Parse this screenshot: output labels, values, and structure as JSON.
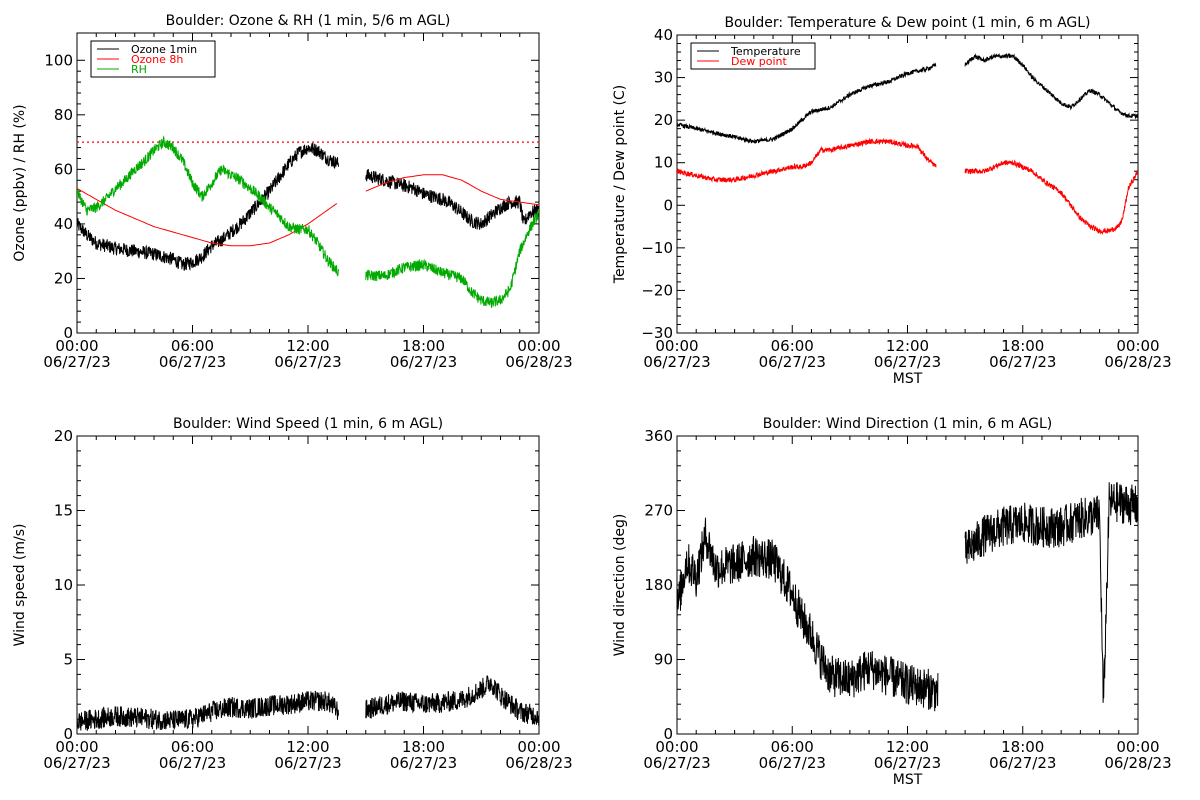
{
  "chart_data": [
    {
      "type": "line",
      "title": "Boulder: Ozone & RH (1 min, 5/6 m AGL)",
      "xlabel": "",
      "ylabel": "Ozone (ppbv) / RH (%)",
      "xlim": [
        0,
        24
      ],
      "ylim": [
        0,
        110
      ],
      "xticks": [
        0,
        6,
        12,
        18,
        24
      ],
      "xtick_labels": [
        [
          "00:00",
          "06/27/23"
        ],
        [
          "06:00",
          "06/27/23"
        ],
        [
          "12:00",
          "06/27/23"
        ],
        [
          "18:00",
          "06/27/23"
        ],
        [
          "00:00",
          "06/28/23"
        ]
      ],
      "yticks": [
        0,
        20,
        40,
        60,
        80,
        100
      ],
      "ytick_labels": [
        "0",
        "20",
        "40",
        "60",
        "80",
        "100"
      ],
      "grid": false,
      "legend": "top-left",
      "hline": {
        "y": 70,
        "color": "#ff0000",
        "style": "dotted"
      },
      "series": [
        {
          "name": "Ozone 1min",
          "color": "#000000",
          "noise": 2.5,
          "x": [
            0,
            0.5,
            1,
            1.5,
            2,
            3,
            4,
            5,
            5.5,
            6,
            6.5,
            7,
            7.5,
            8,
            8.5,
            9,
            9.5,
            10,
            10.5,
            11,
            11.5,
            12,
            12.5,
            13,
            13.6,
            14.8,
            15,
            16,
            17,
            17.5,
            18,
            19,
            19.5,
            20,
            20.5,
            21,
            21.5,
            22,
            22.5,
            23,
            23.2,
            23.5,
            24
          ],
          "y": [
            40,
            36,
            33,
            32,
            31,
            30,
            29,
            27,
            25,
            26,
            28,
            32,
            34,
            37,
            40,
            44,
            48,
            52,
            57,
            62,
            66,
            68,
            67,
            64,
            62,
            null,
            58,
            56,
            54,
            53,
            51,
            49,
            47,
            44,
            41,
            40,
            43,
            46,
            48,
            48,
            40,
            44,
            45
          ]
        },
        {
          "name": "Ozone 8h",
          "color": "#ff0000",
          "noise": 0,
          "x": [
            0,
            1,
            2,
            3,
            4,
            5,
            6,
            7,
            8,
            9,
            10,
            11,
            12,
            13,
            13.6,
            14.8,
            15,
            16,
            17,
            18,
            19,
            20,
            21,
            22,
            23,
            24
          ],
          "y": [
            53,
            49,
            45,
            42,
            39,
            37,
            35,
            33,
            32,
            32,
            33,
            36,
            40,
            45,
            48,
            null,
            52,
            55,
            57,
            58,
            58,
            56,
            52,
            49,
            48,
            47
          ]
        },
        {
          "name": "RH",
          "color": "#00aa00",
          "noise": 2,
          "x": [
            0,
            0.5,
            1,
            1.5,
            2,
            2.5,
            3,
            3.5,
            4,
            4.5,
            5,
            5.5,
            6,
            6.5,
            7,
            7.5,
            8,
            8.5,
            9,
            9.5,
            10,
            10.5,
            11,
            11.5,
            12,
            12.5,
            13,
            13.6,
            14.8,
            15,
            16,
            17,
            18,
            19,
            20,
            20.5,
            21,
            21.5,
            22,
            22.5,
            23,
            23.5,
            24
          ],
          "y": [
            52,
            45,
            46,
            49,
            53,
            56,
            60,
            63,
            67,
            70,
            68,
            63,
            55,
            50,
            55,
            60,
            58,
            56,
            53,
            50,
            46,
            43,
            39,
            38,
            38,
            33,
            27,
            22,
            null,
            21,
            21,
            24,
            25,
            22,
            20,
            15,
            12,
            11,
            12,
            16,
            30,
            38,
            44
          ]
        }
      ]
    },
    {
      "type": "line",
      "title": "Boulder: Temperature & Dew point (1 min, 6 m AGL)",
      "xlabel": "MST",
      "ylabel": "Temperature / Dew point (C)",
      "xlim": [
        0,
        24
      ],
      "ylim": [
        -30,
        40
      ],
      "xticks": [
        0,
        6,
        12,
        18,
        24
      ],
      "xtick_labels": [
        [
          "00:00",
          "06/27/23"
        ],
        [
          "06:00",
          "06/27/23"
        ],
        [
          "12:00",
          "06/27/23"
        ],
        [
          "18:00",
          "06/27/23"
        ],
        [
          "00:00",
          "06/28/23"
        ]
      ],
      "yticks": [
        -30,
        -20,
        -10,
        0,
        10,
        20,
        30,
        40
      ],
      "ytick_labels": [
        "−30",
        "−20",
        "−10",
        "0",
        "10",
        "20",
        "30",
        "40"
      ],
      "grid": false,
      "legend": "top-left",
      "series": [
        {
          "name": "Temperature",
          "color": "#000000",
          "noise": 0.5,
          "x": [
            0,
            1,
            2,
            3,
            4,
            5,
            6,
            6.5,
            7,
            8,
            9,
            10,
            11,
            12,
            13,
            13.5,
            14.8,
            15,
            15.5,
            16,
            16.5,
            17,
            17.5,
            18,
            18.5,
            19,
            19.5,
            20,
            20.5,
            21,
            21.5,
            22,
            22.5,
            23,
            23.5,
            24
          ],
          "y": [
            19,
            18,
            17,
            16,
            15,
            15.5,
            18,
            20,
            22,
            23,
            26,
            28,
            29,
            31,
            32,
            33,
            null,
            33,
            35,
            34,
            35,
            35,
            35,
            33,
            30,
            28,
            26,
            24,
            23,
            25,
            27,
            26,
            24,
            22,
            21,
            21
          ]
        },
        {
          "name": "Dew point",
          "color": "#ff0000",
          "noise": 0.6,
          "x": [
            0,
            1,
            2,
            3,
            4,
            5,
            6,
            6.5,
            7,
            7.5,
            8,
            9,
            10,
            11,
            12,
            12.5,
            13,
            13.5,
            14.8,
            15,
            16,
            17,
            17.5,
            18,
            18.5,
            19,
            20,
            20.5,
            21,
            21.5,
            22,
            22.5,
            23,
            23.2,
            23.5,
            24
          ],
          "y": [
            8,
            7,
            6,
            6,
            7,
            8,
            9,
            9,
            10,
            13,
            13,
            14,
            15,
            15,
            14,
            14,
            11,
            9,
            null,
            8,
            8,
            10,
            10,
            9,
            8,
            6,
            3,
            0,
            -3,
            -5,
            -6,
            -6,
            -5,
            -3,
            4,
            8
          ]
        }
      ]
    },
    {
      "type": "line",
      "title": "Boulder: Wind Speed (1 min, 6 m AGL)",
      "xlabel": "",
      "ylabel": "Wind speed (m/s)",
      "xlim": [
        0,
        24
      ],
      "ylim": [
        0,
        20
      ],
      "xticks": [
        0,
        6,
        12,
        18,
        24
      ],
      "xtick_labels": [
        [
          "00:00",
          "06/27/23"
        ],
        [
          "06:00",
          "06/27/23"
        ],
        [
          "12:00",
          "06/27/23"
        ],
        [
          "18:00",
          "06/27/23"
        ],
        [
          "00:00",
          "06/28/23"
        ]
      ],
      "yticks": [
        0,
        5,
        10,
        15,
        20
      ],
      "ytick_labels": [
        "0",
        "5",
        "10",
        "15",
        "20"
      ],
      "grid": false,
      "legend": "none",
      "series": [
        {
          "name": "",
          "color": "#000000",
          "noise": 0.7,
          "x": [
            0,
            1,
            2,
            3,
            4,
            5,
            6,
            7,
            8,
            9,
            10,
            11,
            12,
            13,
            13.6,
            14.8,
            15,
            16,
            17,
            18,
            19,
            20,
            21,
            21.5,
            22,
            23,
            24
          ],
          "y": [
            0.8,
            1,
            1.2,
            1.1,
            1,
            0.9,
            1,
            1.5,
            1.8,
            1.7,
            1.9,
            2,
            2.2,
            2.2,
            1.5,
            null,
            1.6,
            2,
            2.2,
            2,
            2.1,
            2.3,
            3,
            3.5,
            2.6,
            1.5,
            1.2
          ]
        }
      ]
    },
    {
      "type": "line",
      "title": "Boulder: Wind Direction (1 min, 6 m AGL)",
      "xlabel": "MST",
      "ylabel": "Wind direction (deg)",
      "xlim": [
        0,
        24
      ],
      "ylim": [
        0,
        360
      ],
      "xticks": [
        0,
        6,
        12,
        18,
        24
      ],
      "xtick_labels": [
        [
          "00:00",
          "06/27/23"
        ],
        [
          "06:00",
          "06/27/23"
        ],
        [
          "12:00",
          "06/27/23"
        ],
        [
          "18:00",
          "06/27/23"
        ],
        [
          "00:00",
          "06/28/23"
        ]
      ],
      "yticks": [
        0,
        90,
        180,
        270,
        360
      ],
      "ytick_labels": [
        "0",
        "90",
        "180",
        "270",
        "360"
      ],
      "grid": false,
      "legend": "none",
      "series": [
        {
          "name": "",
          "color": "#000000",
          "noise": 25,
          "x": [
            0,
            0.5,
            1,
            1.5,
            2,
            3,
            4,
            5,
            6,
            6.5,
            7,
            7.5,
            8,
            9,
            10,
            11,
            12,
            13,
            13.6,
            14.8,
            15,
            16,
            17,
            18,
            19,
            20,
            21,
            22,
            22.2,
            22.5,
            23,
            24
          ],
          "y": [
            150,
            210,
            190,
            240,
            200,
            205,
            215,
            210,
            170,
            140,
            120,
            90,
            70,
            65,
            80,
            70,
            60,
            55,
            50,
            null,
            220,
            240,
            250,
            255,
            250,
            250,
            260,
            265,
            30,
            280,
            280,
            275
          ]
        }
      ]
    }
  ],
  "colors": {
    "axis": "#000000",
    "background": "#ffffff"
  }
}
